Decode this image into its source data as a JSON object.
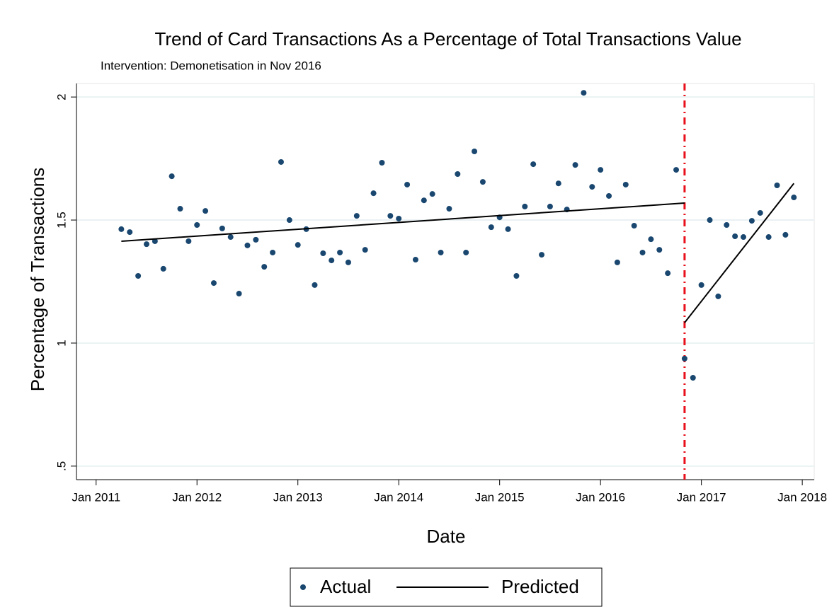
{
  "chart_data": {
    "type": "scatter",
    "title": "Trend of Card Transactions As a Percentage of Total Transactions Value",
    "subtitle": "Intervention: Demonetisation in Nov 2016",
    "x_label": "Date",
    "y_label": "Percentage of Transactions",
    "x": [
      "2011-04",
      "2011-05",
      "2011-06",
      "2011-07",
      "2011-08",
      "2011-09",
      "2011-10",
      "2011-11",
      "2011-12",
      "2012-01",
      "2012-02",
      "2012-03",
      "2012-04",
      "2012-05",
      "2012-06",
      "2012-07",
      "2012-08",
      "2012-09",
      "2012-10",
      "2012-11",
      "2012-12",
      "2013-01",
      "2013-02",
      "2013-03",
      "2013-04",
      "2013-05",
      "2013-06",
      "2013-07",
      "2013-08",
      "2013-09",
      "2013-10",
      "2013-11",
      "2013-12",
      "2014-01",
      "2014-02",
      "2014-03",
      "2014-04",
      "2014-05",
      "2014-06",
      "2014-07",
      "2014-08",
      "2014-09",
      "2014-10",
      "2014-11",
      "2014-12",
      "2015-01",
      "2015-02",
      "2015-03",
      "2015-04",
      "2015-05",
      "2015-06",
      "2015-07",
      "2015-08",
      "2015-09",
      "2015-10",
      "2015-11",
      "2015-12",
      "2016-01",
      "2016-02",
      "2016-03",
      "2016-04",
      "2016-05",
      "2016-06",
      "2016-07",
      "2016-08",
      "2016-09",
      "2016-10",
      "2016-11",
      "2016-12",
      "2017-01",
      "2017-02",
      "2017-03",
      "2017-04",
      "2017-05",
      "2017-06",
      "2017-07",
      "2017-08",
      "2017-09",
      "2017-10",
      "2017-11",
      "2017-12"
    ],
    "series": [
      {
        "name": "Actual",
        "type": "scatter",
        "color": "#1a476f",
        "values": [
          1.463,
          1.451,
          1.273,
          1.402,
          1.414,
          1.302,
          1.678,
          1.546,
          1.414,
          1.48,
          1.537,
          1.244,
          1.466,
          1.431,
          1.201,
          1.397,
          1.42,
          1.31,
          1.368,
          1.736,
          1.5,
          1.399,
          1.463,
          1.236,
          1.365,
          1.336,
          1.368,
          1.328,
          1.517,
          1.379,
          1.609,
          1.733,
          1.517,
          1.506,
          1.644,
          1.339,
          1.58,
          1.606,
          1.368,
          1.546,
          1.687,
          1.368,
          1.779,
          1.655,
          1.471,
          1.511,
          1.463,
          1.273,
          1.555,
          1.727,
          1.359,
          1.555,
          1.649,
          1.543,
          1.724,
          2.017,
          1.635,
          1.704,
          1.598,
          1.328,
          1.644,
          1.477,
          1.368,
          1.422,
          1.379,
          1.284,
          1.704,
          0.937,
          0.859,
          1.236,
          1.5,
          1.19,
          1.48,
          1.434,
          1.431,
          1.497,
          1.529,
          1.431,
          1.641,
          1.44,
          1.592
        ]
      },
      {
        "name": "Predicted",
        "type": "line",
        "color": "#000000",
        "x": [
          "2011-04",
          "2016-11",
          null,
          "2016-11",
          "2017-12"
        ],
        "values": [
          1.414,
          1.569,
          null,
          1.083,
          1.649
        ]
      }
    ],
    "intervention_x": "2016-11",
    "intervention_color": "#e8101a",
    "xlim": [
      "2010-11",
      "2018-02"
    ],
    "xticks": [
      {
        "value": "2011-01",
        "label": "Jan 2011"
      },
      {
        "value": "2012-01",
        "label": "Jan 2012"
      },
      {
        "value": "2013-01",
        "label": "Jan 2013"
      },
      {
        "value": "2014-01",
        "label": "Jan 2014"
      },
      {
        "value": "2015-01",
        "label": "Jan 2015"
      },
      {
        "value": "2016-01",
        "label": "Jan 2016"
      },
      {
        "value": "2017-01",
        "label": "Jan 2017"
      },
      {
        "value": "2018-01",
        "label": "Jan 2018"
      }
    ],
    "ylim": [
      0.445,
      2.055
    ],
    "yticks": [
      {
        "value": 0.5,
        "label": ".5"
      },
      1,
      1.5,
      2
    ],
    "grid": true,
    "legend": "bottom"
  }
}
